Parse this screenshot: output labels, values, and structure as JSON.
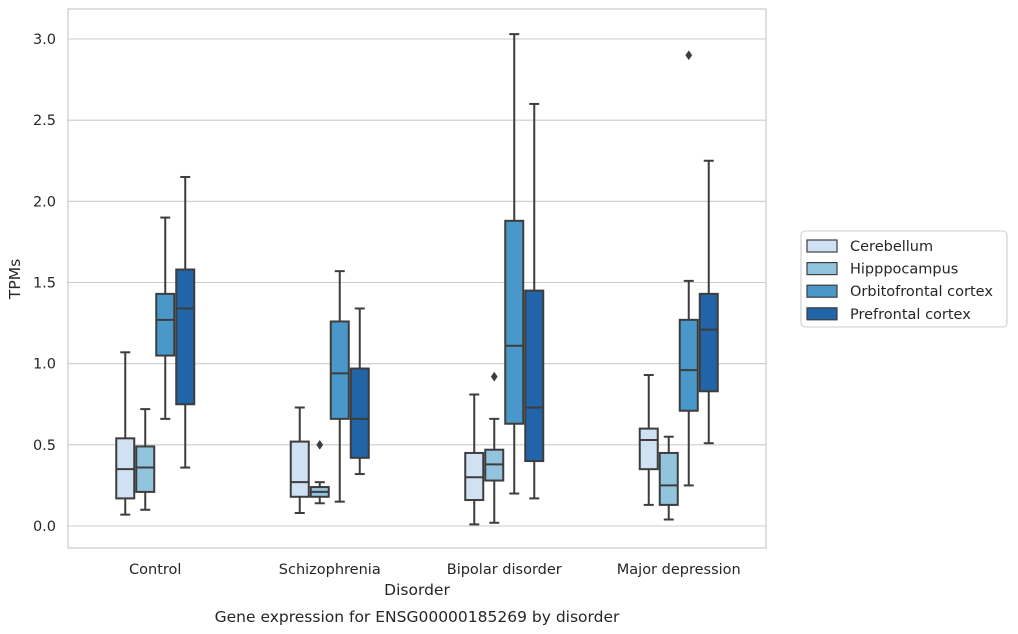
{
  "chart_data": {
    "type": "box",
    "xlabel": "Disorder",
    "ylabel": "TPMs",
    "caption": "Gene expression for ENSG00000185269 by disorder",
    "ylim": [
      -0.13,
      3.18
    ],
    "yticks": [
      0.0,
      0.5,
      1.0,
      1.5,
      2.0,
      2.5,
      3.0
    ],
    "ytick_labels": [
      "0.0",
      "0.5",
      "1.0",
      "1.5",
      "2.0",
      "2.5",
      "3.0"
    ],
    "grid": "horizontal",
    "legend_position": "right",
    "categories": [
      "Control",
      "Schizophrenia",
      "Bipolar disorder",
      "Major depression"
    ],
    "series": [
      {
        "name": "Cerebellum",
        "color": "#cfe1f2",
        "boxes": [
          {
            "whislo": 0.07,
            "q1": 0.17,
            "med": 0.35,
            "q3": 0.54,
            "whishi": 1.07,
            "fliers": []
          },
          {
            "whislo": 0.08,
            "q1": 0.18,
            "med": 0.27,
            "q3": 0.52,
            "whishi": 0.73,
            "fliers": []
          },
          {
            "whislo": 0.01,
            "q1": 0.16,
            "med": 0.3,
            "q3": 0.45,
            "whishi": 0.81,
            "fliers": []
          },
          {
            "whislo": 0.13,
            "q1": 0.35,
            "med": 0.53,
            "q3": 0.6,
            "whishi": 0.93,
            "fliers": []
          }
        ]
      },
      {
        "name": "Hipppocampus",
        "color": "#93c4de",
        "boxes": [
          {
            "whislo": 0.1,
            "q1": 0.21,
            "med": 0.36,
            "q3": 0.49,
            "whishi": 0.72,
            "fliers": []
          },
          {
            "whislo": 0.14,
            "q1": 0.18,
            "med": 0.21,
            "q3": 0.24,
            "whishi": 0.27,
            "fliers": [
              0.5
            ]
          },
          {
            "whislo": 0.02,
            "q1": 0.28,
            "med": 0.38,
            "q3": 0.47,
            "whishi": 0.66,
            "fliers": [
              0.92
            ]
          },
          {
            "whislo": 0.04,
            "q1": 0.13,
            "med": 0.25,
            "q3": 0.45,
            "whishi": 0.55,
            "fliers": []
          }
        ]
      },
      {
        "name": "Orbitofrontal cortex",
        "color": "#4a98c9",
        "boxes": [
          {
            "whislo": 0.66,
            "q1": 1.05,
            "med": 1.27,
            "q3": 1.43,
            "whishi": 1.9,
            "fliers": []
          },
          {
            "whislo": 0.15,
            "q1": 0.66,
            "med": 0.94,
            "q3": 1.26,
            "whishi": 1.57,
            "fliers": []
          },
          {
            "whislo": 0.2,
            "q1": 0.63,
            "med": 1.11,
            "q3": 1.88,
            "whishi": 3.03,
            "fliers": []
          },
          {
            "whislo": 0.25,
            "q1": 0.71,
            "med": 0.96,
            "q3": 1.27,
            "whishi": 1.51,
            "fliers": [
              2.9
            ]
          }
        ]
      },
      {
        "name": "Prefrontal cortex",
        "color": "#2264a8",
        "boxes": [
          {
            "whislo": 0.36,
            "q1": 0.75,
            "med": 1.34,
            "q3": 1.58,
            "whishi": 2.15,
            "fliers": []
          },
          {
            "whislo": 0.32,
            "q1": 0.42,
            "med": 0.66,
            "q3": 0.97,
            "whishi": 1.34,
            "fliers": []
          },
          {
            "whislo": 0.17,
            "q1": 0.4,
            "med": 0.73,
            "q3": 1.45,
            "whishi": 2.6,
            "fliers": []
          },
          {
            "whislo": 0.51,
            "q1": 0.83,
            "med": 1.21,
            "q3": 1.43,
            "whishi": 2.25,
            "fliers": []
          }
        ]
      }
    ]
  }
}
